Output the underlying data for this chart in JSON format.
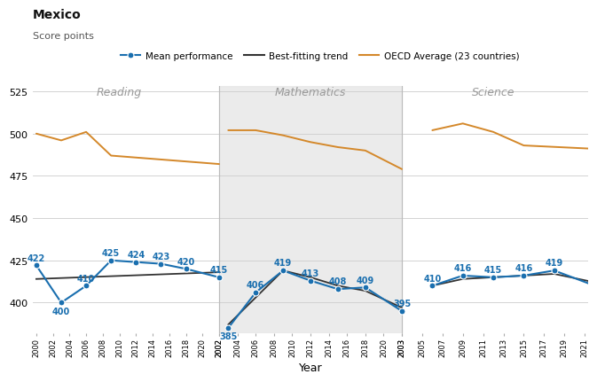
{
  "title": "Mexico",
  "subtitle": "Score points",
  "xlabel": "Year",
  "ylim": [
    382,
    528
  ],
  "yticks": [
    400,
    425,
    450,
    475,
    500,
    525
  ],
  "mean_color": "#1a6faf",
  "trend_color": "#333333",
  "oecd_color": "#d4882a",
  "bg_math_color": "#e8e8e8",
  "section_labels": [
    "Reading",
    "Mathematics",
    "Science"
  ],
  "reading_years": [
    2000,
    2003,
    2006,
    2009,
    2012,
    2015,
    2018,
    2022
  ],
  "reading_mean": [
    422,
    400,
    410,
    425,
    424,
    423,
    420,
    415
  ],
  "reading_oecd_years": [
    2000,
    2003,
    2006,
    2009,
    2022
  ],
  "reading_oecd_vals": [
    500,
    496,
    501,
    487,
    482
  ],
  "reading_trend_years": [
    2000,
    2022
  ],
  "reading_trend_vals": [
    414,
    418
  ],
  "math_years": [
    2003,
    2006,
    2009,
    2012,
    2015,
    2018,
    2022
  ],
  "math_mean": [
    385,
    406,
    419,
    413,
    408,
    409,
    395
  ],
  "math_oecd_years": [
    2003,
    2006,
    2009,
    2012,
    2015,
    2018,
    2022
  ],
  "math_oecd_vals": [
    502,
    502,
    499,
    495,
    492,
    490,
    479
  ],
  "math_trend_years": [
    2003,
    2006,
    2009,
    2012,
    2015,
    2018,
    2022
  ],
  "math_trend_vals": [
    387,
    403,
    419,
    415,
    410,
    407,
    397
  ],
  "science_years": [
    2006,
    2009,
    2012,
    2015,
    2018,
    2022
  ],
  "science_mean": [
    410,
    416,
    415,
    416,
    419,
    410
  ],
  "science_oecd_years": [
    2006,
    2009,
    2012,
    2015,
    2022
  ],
  "science_oecd_vals": [
    502,
    506,
    501,
    493,
    491
  ],
  "science_trend_years": [
    2006,
    2009,
    2012,
    2015,
    2018,
    2022
  ],
  "science_trend_vals": [
    410,
    414,
    415,
    416,
    417,
    412
  ],
  "reading_tick_years": [
    2000,
    2002,
    2004,
    2006,
    2008,
    2010,
    2012,
    2014,
    2016,
    2018,
    2020,
    2022
  ],
  "math_tick_years": [
    2002,
    2004,
    2006,
    2008,
    2010,
    2012,
    2014,
    2016,
    2018,
    2020,
    2022
  ],
  "science_tick_years": [
    2003,
    2005,
    2007,
    2009,
    2011,
    2013,
    2015,
    2017,
    2019,
    2021
  ]
}
